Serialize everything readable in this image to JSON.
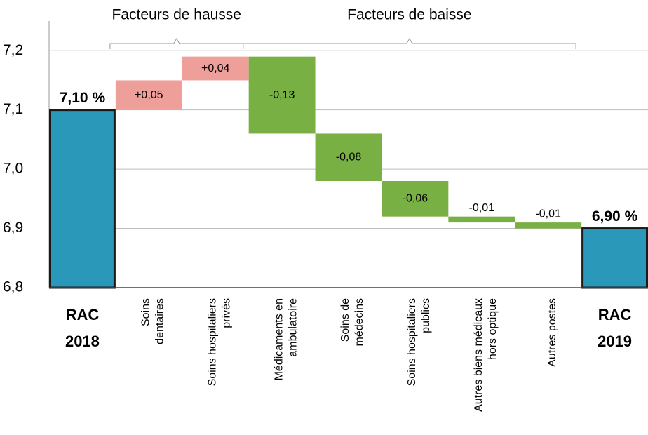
{
  "chart_data": {
    "type": "waterfall",
    "categories": [
      [
        "RAC",
        "2018"
      ],
      [
        "Soins",
        "dentaires"
      ],
      [
        "Soins hospitaliers",
        "privés"
      ],
      [
        "Médicaments en",
        "ambulatoire"
      ],
      [
        "Soins de",
        "médecins"
      ],
      [
        "Soins hospitaliers",
        "publics"
      ],
      [
        "Autres biens médicaux",
        "hors optique"
      ],
      [
        "Autres postes"
      ],
      [
        "RAC",
        "2019"
      ]
    ],
    "values": [
      7.1,
      0.05,
      0.04,
      -0.13,
      -0.08,
      -0.06,
      -0.01,
      -0.01,
      6.9
    ],
    "value_labels": [
      "7,10 %",
      "+0,05",
      "+0,04",
      "-0,13",
      "-0,08",
      "-0,06",
      "-0,01",
      "-0,01",
      "6,90 %"
    ],
    "totals": [
      true,
      false,
      false,
      false,
      false,
      false,
      false,
      false,
      true
    ],
    "colors": {
      "total": "#2a99b9",
      "increase": "#ee9f9a",
      "decrease": "#79b043"
    },
    "groups": [
      {
        "label": "Facteurs de hausse",
        "from": 1,
        "to": 2
      },
      {
        "label": "Facteurs de baisse",
        "from": 3,
        "to": 7
      }
    ],
    "ylim": [
      6.8,
      7.25
    ],
    "yticks": [
      {
        "value": 6.8,
        "label": "6,8"
      },
      {
        "value": 6.9,
        "label": "6,9"
      },
      {
        "value": 7.0,
        "label": "7,0"
      },
      {
        "value": 7.1,
        "label": "7,1"
      },
      {
        "value": 7.2,
        "label": "7,2"
      }
    ],
    "grid": true
  }
}
